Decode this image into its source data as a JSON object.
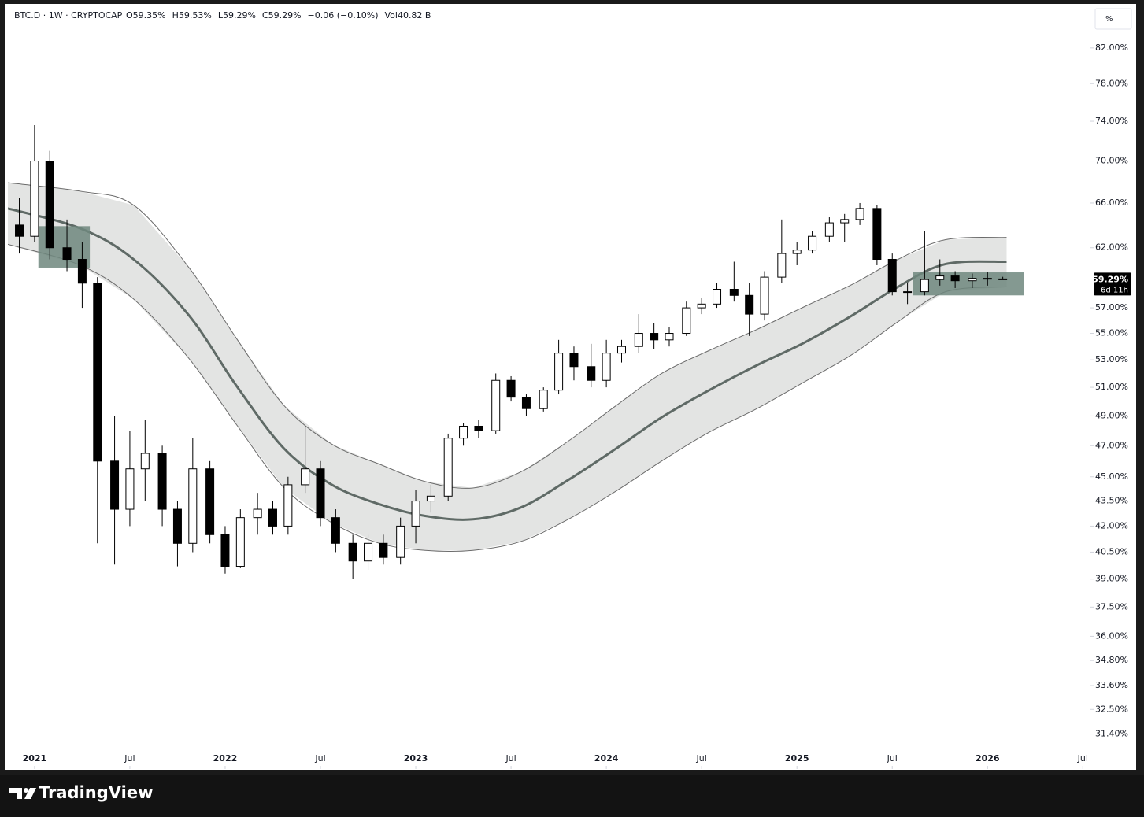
{
  "chart_data": {
    "type": "candlestick",
    "title": "BTC.D · 1W · CRYPTOCAP",
    "ohlc_labels": [
      "O59.35%",
      "H59.53%",
      "L59.29%",
      "C59.29%"
    ],
    "change_label": "−0.06 (−0.10%)",
    "volume_label": "Vol40.82 B",
    "scale_button": "%",
    "log_scale": true,
    "up_color": "#ffffff",
    "down_color": "#000000",
    "wick_color": "#000000",
    "x": [
      2020.92,
      2021.0,
      2021.08,
      2021.17,
      2021.25,
      2021.33,
      2021.42,
      2021.5,
      2021.58,
      2021.67,
      2021.75,
      2021.83,
      2021.92,
      2022.0,
      2022.08,
      2022.17,
      2022.25,
      2022.33,
      2022.42,
      2022.5,
      2022.58,
      2022.67,
      2022.75,
      2022.83,
      2022.92,
      2023.0,
      2023.08,
      2023.17,
      2023.25,
      2023.33,
      2023.42,
      2023.5,
      2023.58,
      2023.67,
      2023.75,
      2023.83,
      2023.92,
      2024.0,
      2024.08,
      2024.17,
      2024.25,
      2024.33,
      2024.42,
      2024.5,
      2024.58,
      2024.67,
      2024.75,
      2024.83,
      2024.92,
      2025.0,
      2025.08,
      2025.17,
      2025.25,
      2025.33,
      2025.42,
      2025.5,
      2025.58,
      2025.67,
      2025.75,
      2025.83,
      2025.92,
      2026.0,
      2026.08
    ],
    "open": [
      64,
      63,
      70,
      62,
      61,
      59,
      46,
      43,
      45.5,
      46.5,
      43,
      41,
      45.5,
      41.5,
      39.7,
      42.5,
      43,
      42,
      44.5,
      45.5,
      42.5,
      41,
      40,
      41,
      40.2,
      42,
      43.5,
      43.8,
      47.5,
      48.3,
      48,
      51.5,
      50.3,
      49.5,
      50.8,
      53.5,
      52.5,
      51.5,
      53.5,
      54,
      55,
      54.5,
      55,
      57,
      57.3,
      58.5,
      58,
      56.5,
      59.5,
      61.5,
      61.8,
      63,
      64.2,
      64.5,
      65.5,
      61,
      58.3,
      58.3,
      59.3,
      59.6,
      59.2,
      59.4,
      59.35
    ],
    "high": [
      66.5,
      73.6,
      71,
      64.5,
      62.5,
      59.5,
      49,
      48,
      48.7,
      47,
      43.5,
      47.5,
      46,
      42,
      43,
      44,
      43.5,
      45,
      48.3,
      46,
      43,
      41.5,
      41.5,
      41.5,
      42.5,
      44.2,
      44.5,
      47.8,
      48.5,
      48.7,
      52,
      51.8,
      50.5,
      51,
      54.5,
      54,
      54.2,
      54.5,
      54.5,
      56.5,
      55.8,
      55.5,
      57.5,
      57.8,
      59,
      60.8,
      59,
      60,
      64.5,
      62.5,
      63.5,
      64.7,
      65,
      66,
      65.8,
      61.5,
      59,
      63.5,
      61,
      60,
      59.8,
      59.9,
      59.53
    ],
    "low": [
      61.5,
      62.5,
      61,
      60,
      57,
      41,
      39.8,
      42,
      43.5,
      42,
      39.7,
      40.5,
      41,
      39.3,
      39.6,
      41.5,
      41.5,
      41.5,
      44,
      42,
      40.5,
      39,
      39.5,
      39.8,
      39.8,
      41,
      42.8,
      43.5,
      47,
      47.5,
      47.8,
      50,
      49,
      49.3,
      50.5,
      51.5,
      51,
      51,
      52.8,
      53.5,
      53.8,
      54,
      54.8,
      56.5,
      57,
      57.5,
      54.8,
      56,
      59,
      60.5,
      61.5,
      62.5,
      62.5,
      64,
      60.5,
      58,
      57.3,
      58,
      58.8,
      58.6,
      58.6,
      58.8,
      59.29
    ],
    "close": [
      63,
      70,
      62,
      61,
      59,
      46,
      43,
      45.5,
      46.5,
      43,
      41,
      45.5,
      41.5,
      39.7,
      42.5,
      43,
      42,
      44.5,
      45.5,
      42.5,
      41,
      40,
      41,
      40.2,
      42,
      43.5,
      43.8,
      47.5,
      48.3,
      48,
      51.5,
      50.3,
      49.5,
      50.8,
      53.5,
      52.5,
      51.5,
      53.5,
      54,
      55,
      54.5,
      55,
      57,
      57.3,
      58.5,
      58,
      56.5,
      59.5,
      61.5,
      61.8,
      63,
      64.2,
      64.5,
      65.5,
      61,
      58.3,
      58.3,
      59.3,
      59.6,
      59.2,
      59.4,
      59.35,
      59.29
    ],
    "band": {
      "fill": "#e3e4e3",
      "edge_color": "#6b6b6b",
      "mid_color": "#5f6a66",
      "x": [
        2020.86,
        2021.24,
        2021.52,
        2021.81,
        2022.06,
        2022.31,
        2022.56,
        2022.81,
        2023.05,
        2023.3,
        2023.55,
        2023.8,
        2024.05,
        2024.29,
        2024.54,
        2024.79,
        2025.04,
        2025.29,
        2025.53,
        2025.78,
        2026.1
      ],
      "upper": [
        67.9,
        67.1,
        65.8,
        60.3,
        54.6,
        49.7,
        47.1,
        45.8,
        44.7,
        44.3,
        45.3,
        47.3,
        49.7,
        52.0,
        53.7,
        55.3,
        57.1,
        58.9,
        61.0,
        62.7,
        62.9
      ],
      "middle": [
        65.5,
        63.7,
        61.0,
        56.4,
        51.1,
        46.8,
        44.5,
        43.3,
        42.6,
        42.4,
        43.1,
        44.8,
        46.8,
        48.9,
        50.8,
        52.6,
        54.3,
        56.4,
        58.7,
        60.6,
        60.8
      ],
      "lower": [
        62.3,
        60.5,
        57.7,
        53.1,
        48.4,
        44.3,
        42.2,
        41.0,
        40.6,
        40.6,
        41.1,
        42.4,
        44.1,
        46.0,
        47.9,
        49.5,
        51.4,
        53.4,
        55.9,
        58.3,
        58.7
      ]
    },
    "zones": {
      "color": "#6f877e",
      "xlim": [
        [
          2021.02,
          2021.29
        ],
        [
          2025.61,
          2026.19
        ]
      ],
      "ylim": [
        [
          60.3,
          63.9
        ],
        [
          58.0,
          59.9
        ]
      ]
    },
    "last_price": {
      "value": 59.29,
      "label": "59.29%",
      "countdown": "6d 11h"
    },
    "xlim": [
      2020.86,
      2026.54
    ],
    "xticks": [
      2021,
      {
        "value": 2021.5,
        "label": "Jul"
      },
      2022,
      {
        "value": 2022.5,
        "label": "Jul"
      },
      2023,
      {
        "value": 2023.5,
        "label": "Jul"
      },
      2024,
      {
        "value": 2024.5,
        "label": "Jul"
      },
      2025,
      {
        "value": 2025.5,
        "label": "Jul"
      },
      2026,
      {
        "value": 2026.5,
        "label": "Jul"
      }
    ],
    "ylim": [
      29.9,
      87.2
    ],
    "yticks": [
      {
        "value": 82,
        "label": "82.00%"
      },
      {
        "value": 78,
        "label": "78.00%"
      },
      {
        "value": 74,
        "label": "74.00%"
      },
      {
        "value": 70,
        "label": "70.00%"
      },
      {
        "value": 66,
        "label": "66.00%"
      },
      {
        "value": 62,
        "label": "62.00%"
      },
      {
        "value": 57,
        "label": "57.00%"
      },
      {
        "value": 55,
        "label": "55.00%"
      },
      {
        "value": 53,
        "label": "53.00%"
      },
      {
        "value": 51,
        "label": "51.00%"
      },
      {
        "value": 49,
        "label": "49.00%"
      },
      {
        "value": 47,
        "label": "47.00%"
      },
      {
        "value": 45,
        "label": "45.00%"
      },
      {
        "value": 43.5,
        "label": "43.50%"
      },
      {
        "value": 42,
        "label": "42.00%"
      },
      {
        "value": 40.5,
        "label": "40.50%"
      },
      {
        "value": 39,
        "label": "39.00%"
      },
      {
        "value": 37.5,
        "label": "37.50%"
      },
      {
        "value": 36,
        "label": "36.00%"
      },
      {
        "value": 34.8,
        "label": "34.80%"
      },
      {
        "value": 33.6,
        "label": "33.60%"
      },
      {
        "value": 32.5,
        "label": "32.50%"
      },
      {
        "value": 31.4,
        "label": "31.40%"
      }
    ],
    "grid": false
  },
  "brand": "TradingView"
}
